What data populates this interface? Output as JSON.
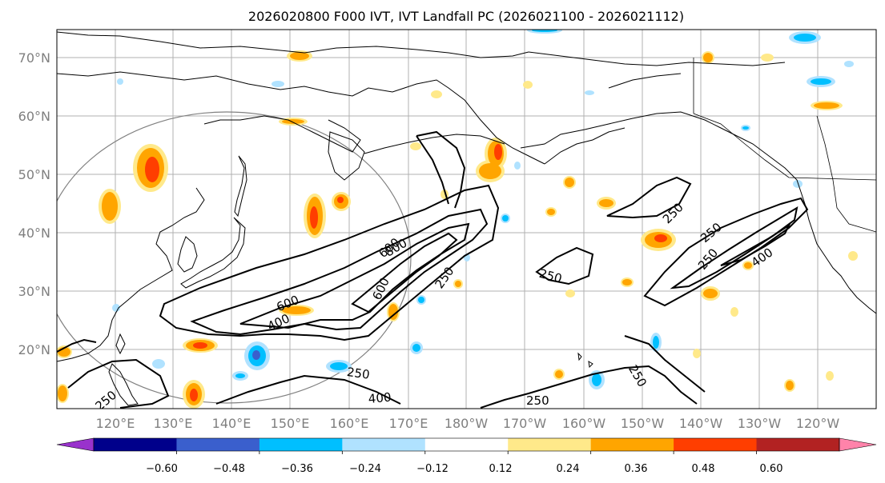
{
  "title": "2026020800 F000 IVT, IVT Landfall PC (2026021100 - 2026021112)",
  "lat_labels": [
    "70°N",
    "60°N",
    "50°N",
    "40°N",
    "30°N",
    "20°N"
  ],
  "lon_labels": [
    "120°E",
    "130°E",
    "140°E",
    "150°E",
    "160°E",
    "170°E",
    "180°W",
    "170°W",
    "160°W",
    "150°W",
    "140°W",
    "130°W",
    "120°W"
  ],
  "colorbar": {
    "colors": [
      "#9932cc",
      "#00008b",
      "#3a5fcd",
      "#00bfff",
      "#b0e2ff",
      "#ffffff",
      "#ffe98a",
      "#ffa500",
      "#ff3e00",
      "#b22222",
      "#ff83aa"
    ],
    "tick_labels": [
      "−0.60",
      "−0.48",
      "−0.36",
      "−0.24",
      "−0.12",
      "0.12",
      "0.24",
      "0.36",
      "0.48",
      "0.60"
    ]
  },
  "contour_labels": [
    "600",
    "400",
    "600",
    "800",
    "250",
    "600",
    "250",
    "250",
    "400",
    "250",
    "250",
    "400",
    "250",
    "250",
    "250",
    "250"
  ]
}
